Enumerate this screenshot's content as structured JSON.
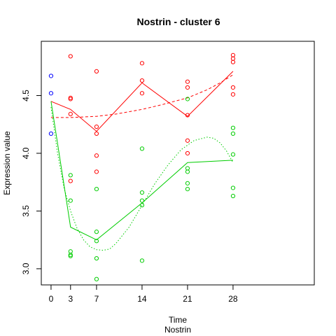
{
  "chart_data": {
    "type": "scatter",
    "title": "Nostrin - cluster 6",
    "xlabel": "Time",
    "xlabel2": "Nostrin",
    "ylabel": "Expression value",
    "xlim": [
      -1.5,
      40.5
    ],
    "ylim": [
      2.86,
      4.97
    ],
    "x_ticks": [
      0,
      3,
      7,
      14,
      21,
      28
    ],
    "y_ticks": [
      3.0,
      3.5,
      4.0,
      4.5
    ],
    "y_tick_labels": [
      "3.0",
      "3.5",
      "4.0",
      "4.5"
    ],
    "colors": {
      "red": "#ff0000",
      "green": "#00cd00",
      "blue": "#0000ff",
      "axis": "#000000"
    },
    "series": [
      {
        "color": "blue",
        "points": [
          {
            "x": 0,
            "y": 4.67
          },
          {
            "x": 0,
            "y": 4.52
          },
          {
            "x": 0,
            "y": 4.17
          }
        ]
      },
      {
        "color": "red",
        "points": [
          {
            "x": 3,
            "y": 4.84
          },
          {
            "x": 3,
            "y": 4.48
          },
          {
            "x": 3,
            "y": 4.47
          },
          {
            "x": 3,
            "y": 4.34
          },
          {
            "x": 3,
            "y": 3.76
          },
          {
            "x": 7,
            "y": 4.71
          },
          {
            "x": 7,
            "y": 4.23
          },
          {
            "x": 7,
            "y": 4.17
          },
          {
            "x": 7,
            "y": 3.98
          },
          {
            "x": 7,
            "y": 3.84
          },
          {
            "x": 14,
            "y": 4.78
          },
          {
            "x": 14,
            "y": 4.63
          },
          {
            "x": 14,
            "y": 4.52
          },
          {
            "x": 21,
            "y": 4.62
          },
          {
            "x": 21,
            "y": 4.57
          },
          {
            "x": 21,
            "y": 4.33
          },
          {
            "x": 21,
            "y": 4.11
          },
          {
            "x": 21,
            "y": 4.0
          },
          {
            "x": 28,
            "y": 4.85
          },
          {
            "x": 28,
            "y": 4.82
          },
          {
            "x": 28,
            "y": 4.79
          },
          {
            "x": 28,
            "y": 4.57
          },
          {
            "x": 28,
            "y": 4.51
          }
        ],
        "mean_line": [
          {
            "x": 0,
            "y": 4.45
          },
          {
            "x": 3,
            "y": 4.38
          },
          {
            "x": 7,
            "y": 4.19
          },
          {
            "x": 14,
            "y": 4.61
          },
          {
            "x": 21,
            "y": 4.32
          },
          {
            "x": 28,
            "y": 4.71
          }
        ],
        "fit_line": [
          {
            "x": 0,
            "y": 4.31
          },
          {
            "x": 3,
            "y": 4.31
          },
          {
            "x": 7,
            "y": 4.32
          },
          {
            "x": 10,
            "y": 4.34
          },
          {
            "x": 14,
            "y": 4.38
          },
          {
            "x": 17,
            "y": 4.42
          },
          {
            "x": 21,
            "y": 4.48
          },
          {
            "x": 24,
            "y": 4.55
          },
          {
            "x": 26,
            "y": 4.61
          },
          {
            "x": 28,
            "y": 4.68
          }
        ]
      },
      {
        "color": "green",
        "points": [
          {
            "x": 3,
            "y": 3.81
          },
          {
            "x": 3,
            "y": 3.59
          },
          {
            "x": 3,
            "y": 3.15
          },
          {
            "x": 3,
            "y": 3.12
          },
          {
            "x": 3,
            "y": 3.11
          },
          {
            "x": 7,
            "y": 3.69
          },
          {
            "x": 7,
            "y": 3.32
          },
          {
            "x": 7,
            "y": 3.24
          },
          {
            "x": 7,
            "y": 3.09
          },
          {
            "x": 7,
            "y": 2.91
          },
          {
            "x": 14,
            "y": 4.04
          },
          {
            "x": 14,
            "y": 3.66
          },
          {
            "x": 14,
            "y": 3.59
          },
          {
            "x": 14,
            "y": 3.55
          },
          {
            "x": 14,
            "y": 3.07
          },
          {
            "x": 21,
            "y": 4.47
          },
          {
            "x": 21,
            "y": 3.87
          },
          {
            "x": 21,
            "y": 3.84
          },
          {
            "x": 21,
            "y": 3.74
          },
          {
            "x": 21,
            "y": 3.69
          },
          {
            "x": 28,
            "y": 4.22
          },
          {
            "x": 28,
            "y": 4.17
          },
          {
            "x": 28,
            "y": 3.99
          },
          {
            "x": 28,
            "y": 3.7
          },
          {
            "x": 28,
            "y": 3.63
          }
        ],
        "mean_line": [
          {
            "x": 0,
            "y": 4.45
          },
          {
            "x": 3,
            "y": 3.36
          },
          {
            "x": 7,
            "y": 3.25
          },
          {
            "x": 14,
            "y": 3.57
          },
          {
            "x": 21,
            "y": 3.92
          },
          {
            "x": 28,
            "y": 3.94
          }
        ],
        "fit_line": [
          {
            "x": 0,
            "y": 4.4
          },
          {
            "x": 1,
            "y": 4.0
          },
          {
            "x": 2,
            "y": 3.7
          },
          {
            "x": 3,
            "y": 3.5
          },
          {
            "x": 4,
            "y": 3.35
          },
          {
            "x": 5,
            "y": 3.25
          },
          {
            "x": 6,
            "y": 3.19
          },
          {
            "x": 7,
            "y": 3.165
          },
          {
            "x": 8,
            "y": 3.16
          },
          {
            "x": 9,
            "y": 3.17
          },
          {
            "x": 10,
            "y": 3.22
          },
          {
            "x": 12,
            "y": 3.36
          },
          {
            "x": 14,
            "y": 3.55
          },
          {
            "x": 16,
            "y": 3.74
          },
          {
            "x": 18,
            "y": 3.9
          },
          {
            "x": 20,
            "y": 4.03
          },
          {
            "x": 22,
            "y": 4.11
          },
          {
            "x": 24,
            "y": 4.14
          },
          {
            "x": 25,
            "y": 4.13
          },
          {
            "x": 26,
            "y": 4.09
          },
          {
            "x": 27,
            "y": 4.02
          },
          {
            "x": 28,
            "y": 3.92
          }
        ]
      }
    ]
  }
}
